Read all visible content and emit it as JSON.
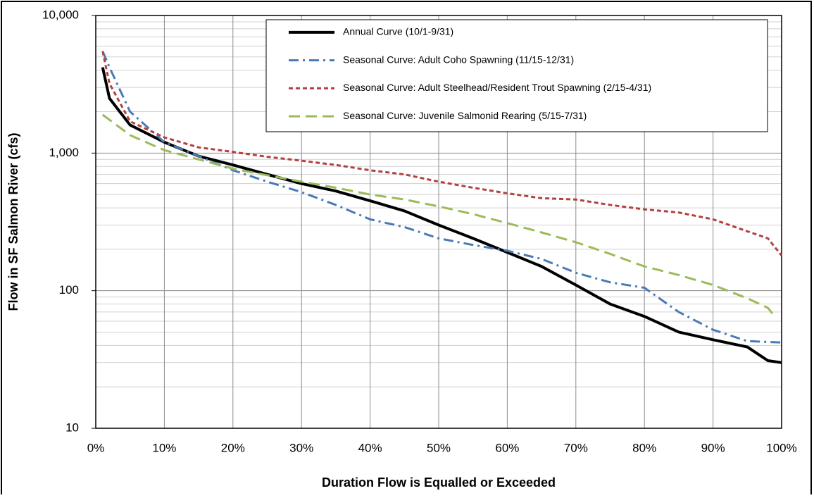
{
  "chart_data": {
    "type": "line",
    "xlabel": "Duration Flow is Equalled or Exceeded",
    "ylabel": "Flow in SF Salmon River  (cfs)",
    "xlim": [
      0,
      100
    ],
    "xticks": [
      {
        "value": 0,
        "label": "0%"
      },
      {
        "value": 10,
        "label": "10%"
      },
      {
        "value": 20,
        "label": "20%"
      },
      {
        "value": 30,
        "label": "30%"
      },
      {
        "value": 40,
        "label": "40%"
      },
      {
        "value": 50,
        "label": "50%"
      },
      {
        "value": 60,
        "label": "60%"
      },
      {
        "value": 70,
        "label": "70%"
      },
      {
        "value": 80,
        "label": "80%"
      },
      {
        "value": 90,
        "label": "90%"
      },
      {
        "value": 100,
        "label": "100%"
      }
    ],
    "ylim": [
      10,
      10000
    ],
    "yticks": [
      10,
      100,
      {
        "value": 1000,
        "label": "1,000"
      },
      {
        "value": 10000,
        "label": "10,000"
      }
    ],
    "ylog": true,
    "grid": true,
    "minor_grid": true,
    "legend": "top-right",
    "series": [
      {
        "name": "Annual Curve (10/1-9/31)",
        "color": "#000000",
        "style": "solid",
        "x": [
          1,
          2,
          5,
          10,
          15,
          20,
          25,
          30,
          35,
          40,
          45,
          50,
          55,
          60,
          65,
          70,
          75,
          80,
          85,
          90,
          95,
          98,
          100
        ],
        "values": [
          4200,
          2500,
          1600,
          1200,
          950,
          820,
          700,
          600,
          530,
          450,
          380,
          300,
          240,
          190,
          150,
          110,
          80,
          65,
          50,
          44,
          39,
          31,
          30
        ]
      },
      {
        "name": "Seasonal Curve: Adult Coho Spawning (11/15-12/31)",
        "color": "#4a7ab5",
        "style": "dashdot",
        "x": [
          1,
          2,
          5,
          10,
          15,
          20,
          25,
          30,
          35,
          40,
          45,
          50,
          55,
          60,
          65,
          70,
          75,
          80,
          85,
          90,
          95,
          100
        ],
        "values": [
          5500,
          4200,
          2000,
          1200,
          950,
          750,
          620,
          520,
          420,
          330,
          290,
          240,
          215,
          195,
          170,
          135,
          115,
          105,
          70,
          52,
          43,
          42
        ]
      },
      {
        "name": "Seasonal Curve: Adult Steelhead/Resident Trout Spawning (2/15-4/31)",
        "color": "#b3403f",
        "style": "shortdash",
        "x": [
          1,
          2,
          5,
          10,
          15,
          20,
          25,
          30,
          35,
          40,
          45,
          50,
          55,
          60,
          65,
          70,
          75,
          80,
          85,
          90,
          95,
          98,
          100
        ],
        "values": [
          5500,
          3200,
          1700,
          1300,
          1100,
          1020,
          940,
          880,
          820,
          750,
          700,
          620,
          560,
          510,
          470,
          460,
          420,
          390,
          370,
          330,
          270,
          240,
          180
        ]
      },
      {
        "name": "Seasonal Curve: Juvenile  Salmonid Rearing (5/15-7/31)",
        "color": "#9bbb59",
        "style": "longdash",
        "x": [
          1,
          5,
          10,
          15,
          20,
          25,
          30,
          35,
          40,
          45,
          50,
          55,
          60,
          65,
          70,
          75,
          80,
          85,
          90,
          95,
          98,
          99
        ],
        "values": [
          1900,
          1350,
          1050,
          900,
          770,
          690,
          620,
          560,
          500,
          460,
          410,
          360,
          310,
          265,
          225,
          185,
          150,
          130,
          110,
          88,
          75,
          65
        ]
      }
    ]
  }
}
